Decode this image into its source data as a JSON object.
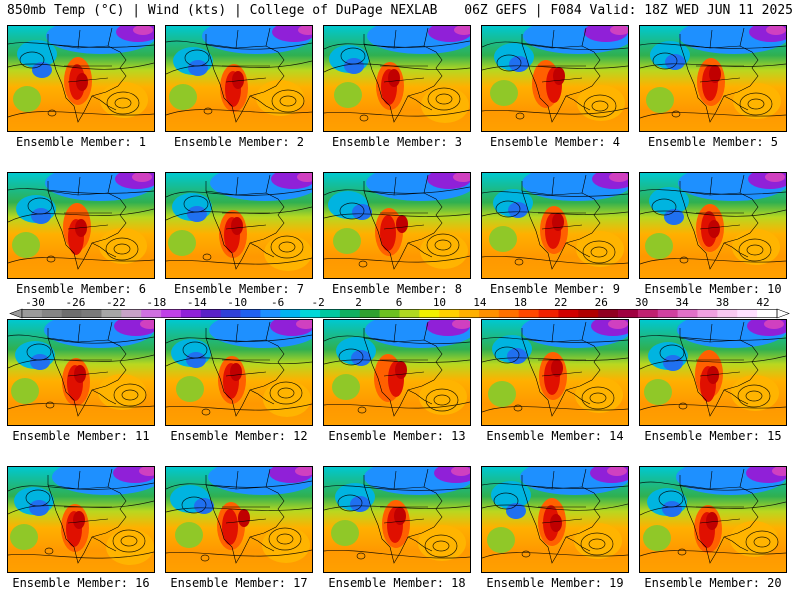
{
  "header": {
    "left": "850mb Temp (°C) | Wind (kts) | College of DuPage NEXLAB",
    "right": "06Z GEFS | F084 Valid: 18Z WED JUN 11 2025"
  },
  "members": [
    {
      "label": "Ensemble Member: 1"
    },
    {
      "label": "Ensemble Member: 2"
    },
    {
      "label": "Ensemble Member: 3"
    },
    {
      "label": "Ensemble Member: 4"
    },
    {
      "label": "Ensemble Member: 5"
    },
    {
      "label": "Ensemble Member: 6"
    },
    {
      "label": "Ensemble Member: 7"
    },
    {
      "label": "Ensemble Member: 8"
    },
    {
      "label": "Ensemble Member: 9"
    },
    {
      "label": "Ensemble Member: 10"
    },
    {
      "label": "Ensemble Member: 11"
    },
    {
      "label": "Ensemble Member: 12"
    },
    {
      "label": "Ensemble Member: 13"
    },
    {
      "label": "Ensemble Member: 14"
    },
    {
      "label": "Ensemble Member: 15"
    },
    {
      "label": "Ensemble Member: 16"
    },
    {
      "label": "Ensemble Member: 17"
    },
    {
      "label": "Ensemble Member: 18"
    },
    {
      "label": "Ensemble Member: 19"
    },
    {
      "label": "Ensemble Member: 20"
    }
  ],
  "colorbar": {
    "ticks": [
      "-30",
      "-26",
      "-22",
      "-18",
      "-14",
      "-10",
      "-6",
      "-2",
      "2",
      "6",
      "10",
      "14",
      "18",
      "22",
      "26",
      "30",
      "34",
      "38",
      "42"
    ],
    "colors": [
      "#9a9a9a",
      "#858585",
      "#6e6e6e",
      "#7a7a7a",
      "#a6a6a6",
      "#c8a2c8",
      "#d070e0",
      "#c040e8",
      "#9020d8",
      "#5a20c8",
      "#3040d8",
      "#2060f0",
      "#1e90ff",
      "#00b4f0",
      "#00d8d8",
      "#00c8a0",
      "#10b060",
      "#30a030",
      "#6cc020",
      "#b0d820",
      "#f0f000",
      "#ffd000",
      "#ffb000",
      "#ff9000",
      "#ff7000",
      "#ff4800",
      "#f02000",
      "#d00000",
      "#b00000",
      "#900020",
      "#a00040",
      "#c02070",
      "#d040a0",
      "#e070c8",
      "#f0a0e0",
      "#f8c8f0",
      "#ffe0ff",
      "#ffffff"
    ]
  }
}
